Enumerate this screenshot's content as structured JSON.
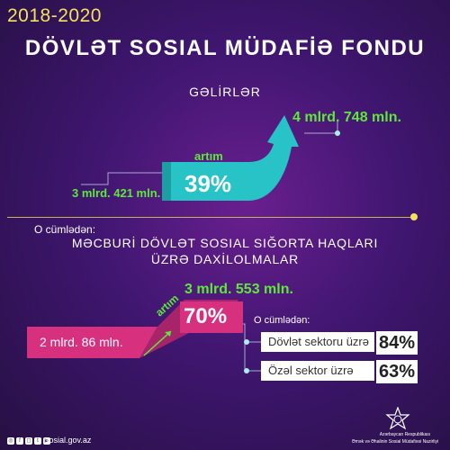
{
  "header": {
    "years": "2018-2020",
    "title": "DÖVLƏT SOSIAL MÜDAFİƏ FONDU",
    "subtitle": "GƏLİRLƏR"
  },
  "revenue": {
    "start_value": "3 mlrd. 421 mln.",
    "end_value": "4 mlrd. 748 mln.",
    "growth_label": "artım",
    "growth_pct": "39%"
  },
  "divider": {
    "label": "O cümlədən:"
  },
  "insurance": {
    "title_line1": "MƏCBURİ DÖVLƏT SOSIAL SIĞORTA HAQLARI",
    "title_line2": "ÜZRƏ DAXİLOLMALAR",
    "start_value": "2 mlrd. 86 mln.",
    "end_value": "3 mlrd. 553 mln.",
    "growth_label": "artım",
    "growth_pct": "70%",
    "breakdown_label": "O cümlədən:",
    "breakdown": [
      {
        "label": "Dövlət sektoru üzrə",
        "pct": "84%"
      },
      {
        "label": "Özəl sektor üzrə",
        "pct": "63%"
      }
    ]
  },
  "footer": {
    "website": "sosial.gov.az",
    "org_line1": "Azərbaycan Respublikası",
    "org_line2": "Əmək və Əhalinin Sosial Müdafiəsi Nazirliyi"
  },
  "colors": {
    "accent_yellow": "#f2e15a",
    "accent_green": "#5de83a",
    "accent_teal": "#2bc9c9",
    "accent_pink": "#d6307f",
    "background": "#3f1670"
  }
}
